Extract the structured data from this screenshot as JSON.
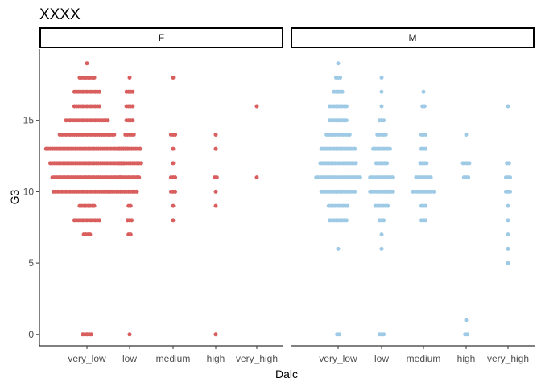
{
  "chart_data": {
    "type": "scatter",
    "title": "XXXX",
    "xlabel": "Dalc",
    "ylabel": "G3",
    "categories": [
      "very_low",
      "low",
      "medium",
      "high",
      "very_high"
    ],
    "yticks": [
      0,
      5,
      10,
      15
    ],
    "ylim": [
      -0.8,
      20
    ],
    "grid": false,
    "legend": "none",
    "facets": [
      {
        "label": "F",
        "color": "#D95F5F",
        "series": [
          {
            "category": "very_low",
            "groups": [
              {
                "y": 0,
                "count": 5
              },
              {
                "y": 7,
                "count": 4
              },
              {
                "y": 8,
                "count": 13
              },
              {
                "y": 9,
                "count": 8
              },
              {
                "y": 10,
                "count": 33
              },
              {
                "y": 11,
                "count": 34
              },
              {
                "y": 12,
                "count": 36
              },
              {
                "y": 13,
                "count": 40
              },
              {
                "y": 14,
                "count": 27
              },
              {
                "y": 15,
                "count": 21
              },
              {
                "y": 16,
                "count": 13
              },
              {
                "y": 17,
                "count": 13
              },
              {
                "y": 18,
                "count": 8
              },
              {
                "y": 19,
                "count": 1
              }
            ]
          },
          {
            "category": "low",
            "groups": [
              {
                "y": 0,
                "count": 1
              },
              {
                "y": 7,
                "count": 2
              },
              {
                "y": 8,
                "count": 3
              },
              {
                "y": 9,
                "count": 2
              },
              {
                "y": 10,
                "count": 8
              },
              {
                "y": 11,
                "count": 10
              },
              {
                "y": 12,
                "count": 12
              },
              {
                "y": 13,
                "count": 11
              },
              {
                "y": 14,
                "count": 5
              },
              {
                "y": 15,
                "count": 4
              },
              {
                "y": 16,
                "count": 4
              },
              {
                "y": 17,
                "count": 4
              },
              {
                "y": 18,
                "count": 1
              }
            ]
          },
          {
            "category": "medium",
            "groups": [
              {
                "y": 8,
                "count": 1
              },
              {
                "y": 9,
                "count": 1
              },
              {
                "y": 10,
                "count": 3
              },
              {
                "y": 11,
                "count": 3
              },
              {
                "y": 12,
                "count": 1
              },
              {
                "y": 13,
                "count": 1
              },
              {
                "y": 14,
                "count": 3
              },
              {
                "y": 18,
                "count": 1
              }
            ]
          },
          {
            "category": "high",
            "groups": [
              {
                "y": 0,
                "count": 1
              },
              {
                "y": 9,
                "count": 1
              },
              {
                "y": 10,
                "count": 1
              },
              {
                "y": 11,
                "count": 2
              },
              {
                "y": 13,
                "count": 1
              },
              {
                "y": 14,
                "count": 1
              }
            ]
          },
          {
            "category": "very_high",
            "groups": [
              {
                "y": 11,
                "count": 1
              },
              {
                "y": 16,
                "count": 1
              }
            ]
          }
        ]
      },
      {
        "label": "M",
        "color": "#9ECAE5",
        "series": [
          {
            "category": "very_low",
            "groups": [
              {
                "y": 0,
                "count": 2
              },
              {
                "y": 6,
                "count": 1
              },
              {
                "y": 8,
                "count": 9
              },
              {
                "y": 9,
                "count": 10
              },
              {
                "y": 10,
                "count": 17
              },
              {
                "y": 11,
                "count": 22
              },
              {
                "y": 12,
                "count": 18
              },
              {
                "y": 13,
                "count": 17
              },
              {
                "y": 14,
                "count": 12
              },
              {
                "y": 15,
                "count": 9
              },
              {
                "y": 16,
                "count": 9
              },
              {
                "y": 17,
                "count": 5
              },
              {
                "y": 18,
                "count": 3
              },
              {
                "y": 19,
                "count": 1
              }
            ]
          },
          {
            "category": "low",
            "groups": [
              {
                "y": 0,
                "count": 3
              },
              {
                "y": 6,
                "count": 1
              },
              {
                "y": 7,
                "count": 1
              },
              {
                "y": 8,
                "count": 3
              },
              {
                "y": 9,
                "count": 7
              },
              {
                "y": 10,
                "count": 12
              },
              {
                "y": 11,
                "count": 12
              },
              {
                "y": 12,
                "count": 6
              },
              {
                "y": 13,
                "count": 9
              },
              {
                "y": 14,
                "count": 5
              },
              {
                "y": 15,
                "count": 3
              },
              {
                "y": 16,
                "count": 1
              },
              {
                "y": 17,
                "count": 1
              },
              {
                "y": 18,
                "count": 1
              }
            ]
          },
          {
            "category": "medium",
            "groups": [
              {
                "y": 8,
                "count": 3
              },
              {
                "y": 9,
                "count": 3
              },
              {
                "y": 10,
                "count": 11
              },
              {
                "y": 11,
                "count": 8
              },
              {
                "y": 12,
                "count": 4
              },
              {
                "y": 13,
                "count": 3
              },
              {
                "y": 14,
                "count": 3
              },
              {
                "y": 16,
                "count": 2
              },
              {
                "y": 17,
                "count": 1
              }
            ]
          },
          {
            "category": "high",
            "groups": [
              {
                "y": 0,
                "count": 2
              },
              {
                "y": 1,
                "count": 1
              },
              {
                "y": 11,
                "count": 3
              },
              {
                "y": 12,
                "count": 4
              },
              {
                "y": 14,
                "count": 1
              }
            ]
          },
          {
            "category": "very_high",
            "groups": [
              {
                "y": 5,
                "count": 1
              },
              {
                "y": 6,
                "count": 1
              },
              {
                "y": 7,
                "count": 1
              },
              {
                "y": 8,
                "count": 1
              },
              {
                "y": 9,
                "count": 1
              },
              {
                "y": 10,
                "count": 3
              },
              {
                "y": 11,
                "count": 3
              },
              {
                "y": 12,
                "count": 2
              },
              {
                "y": 16,
                "count": 1
              }
            ]
          }
        ]
      }
    ]
  }
}
